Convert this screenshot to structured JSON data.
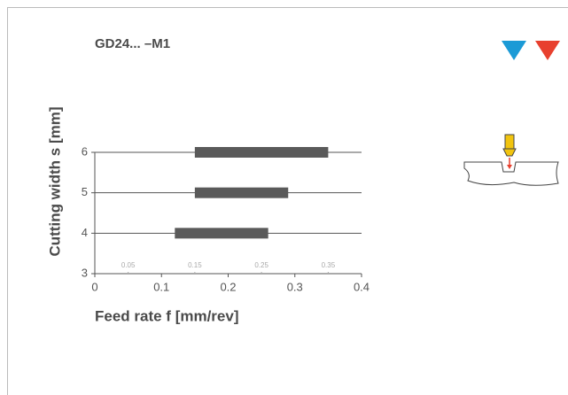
{
  "chart_data": {
    "type": "range-bar",
    "title": "GD24... –M1",
    "x_label": "Feed rate f [mm/rev]",
    "y_label": "Cutting width s [mm]",
    "y": [
      4,
      5,
      6
    ],
    "starts": [
      0.12,
      0.15,
      0.15
    ],
    "ends": [
      0.26,
      0.29,
      0.35
    ],
    "color": "#5a5a5a",
    "xlim": [
      0,
      0.4
    ],
    "xticks": [
      0,
      0.1,
      0.2,
      0.3,
      0.4
    ],
    "minor_xticks": [
      0.05,
      0.15,
      0.25,
      0.35
    ],
    "ylim": [
      3,
      6
    ],
    "yticks": [
      3,
      4,
      5,
      6
    ]
  }
}
